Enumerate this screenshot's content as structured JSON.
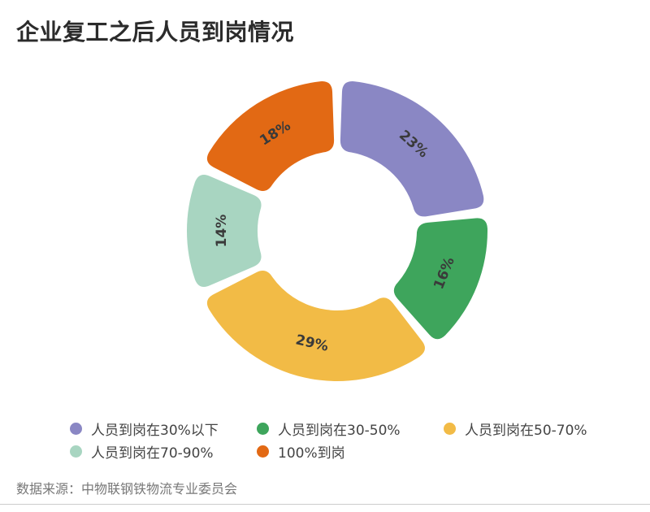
{
  "chart_data": {
    "type": "pie",
    "title": "企业复工之后人员到岗情况",
    "categories": [
      "人员到岗在30%以下",
      "人员到岗在30-50%",
      "人员到岗在50-70%",
      "人员到岗在70-90%",
      "100%到岗"
    ],
    "values": [
      23,
      16,
      29,
      14,
      18
    ],
    "value_labels": [
      "23%",
      "16%",
      "29%",
      "14%",
      "18%"
    ],
    "colors": [
      "#8a87c4",
      "#3ea55c",
      "#f2bb46",
      "#a8d5c1",
      "#e26914"
    ],
    "style": "donut",
    "legend_position": "bottom"
  },
  "source": "数据来源：中物联钢铁物流专业委员会"
}
